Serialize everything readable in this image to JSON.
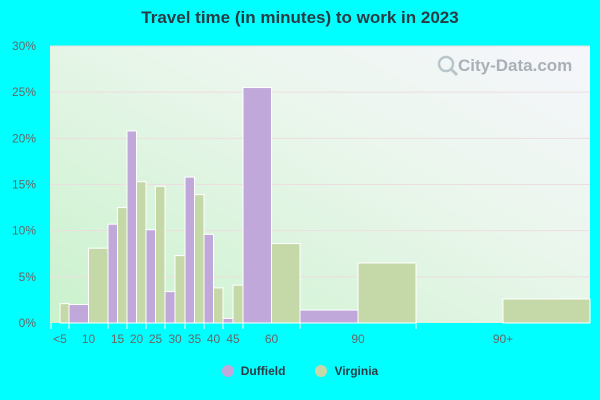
{
  "chart_data": {
    "type": "bar",
    "title": "Travel time (in minutes) to work in 2023",
    "categories": [
      "<5",
      "10",
      "15",
      "20",
      "25",
      "30",
      "35",
      "40",
      "45",
      "60",
      "90",
      "90+"
    ],
    "series": [
      {
        "name": "Duffield",
        "color": "#c0a8da",
        "values": [
          0.0,
          2.0,
          10.7,
          20.8,
          10.1,
          3.4,
          15.8,
          9.6,
          0.5,
          25.5,
          1.4,
          0.0
        ]
      },
      {
        "name": "Virginia",
        "color": "#c5d9a8",
        "values": [
          2.1,
          8.1,
          12.5,
          15.3,
          14.8,
          7.3,
          13.9,
          3.8,
          4.1,
          8.6,
          6.5,
          2.6
        ]
      }
    ],
    "ylim": [
      0,
      30
    ],
    "yticks": [
      "0%",
      "5%",
      "10%",
      "15%",
      "20%",
      "25%",
      "30%"
    ],
    "ytick_values": [
      0,
      5,
      10,
      15,
      20,
      25,
      30
    ],
    "grid": true,
    "legend_placement": "bottom",
    "watermark": "City-Data.com"
  }
}
